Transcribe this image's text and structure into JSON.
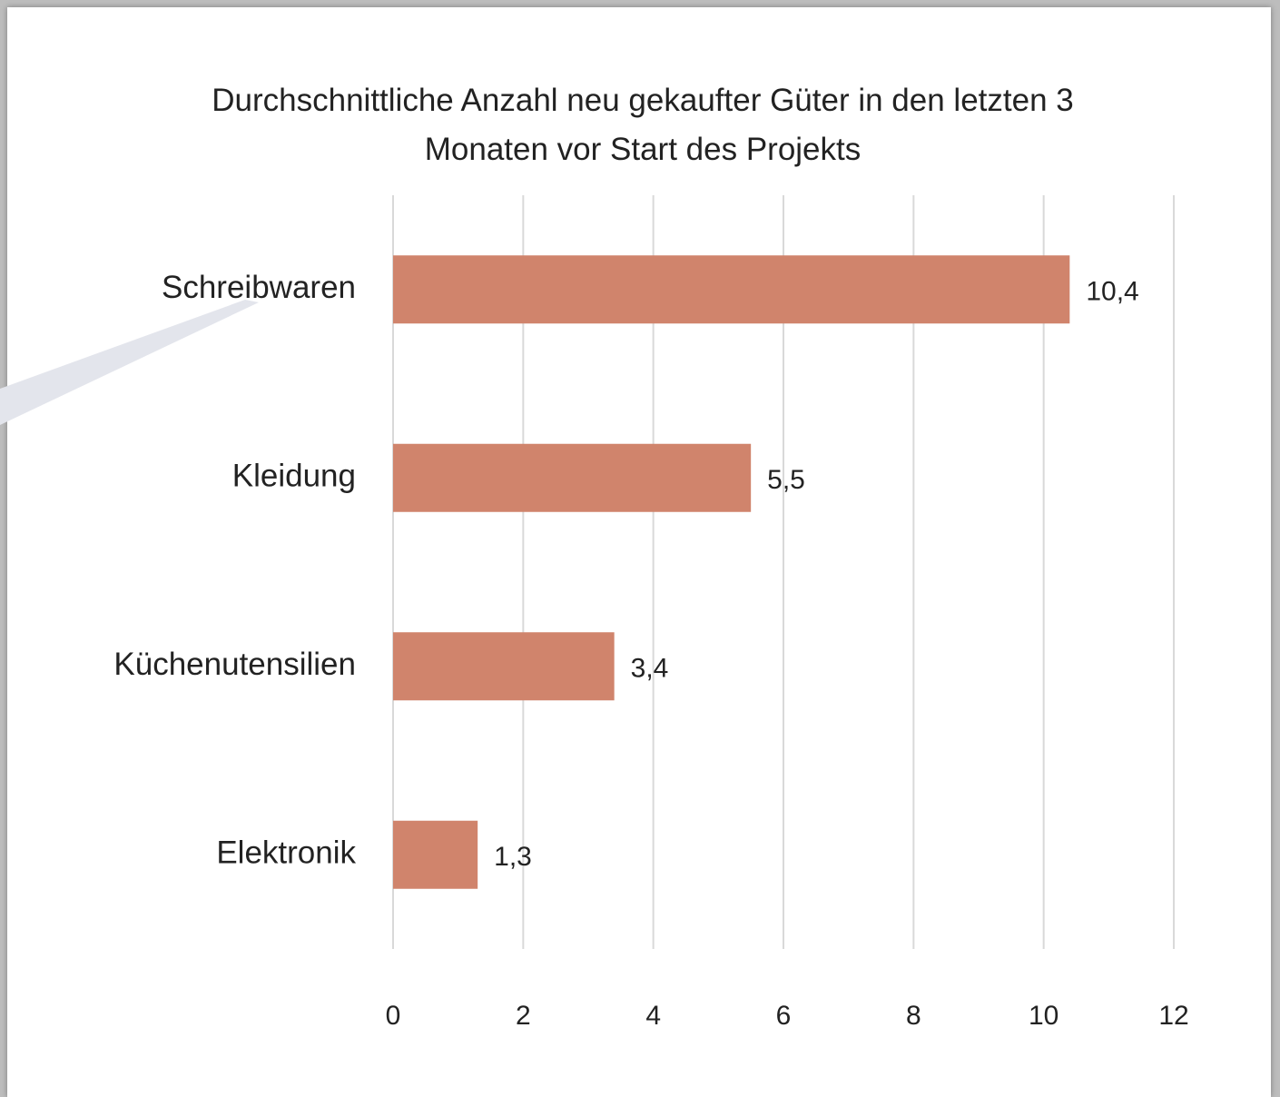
{
  "chart_data": {
    "type": "bar",
    "orientation": "horizontal",
    "title": "Durchschnittliche Anzahl neu gekaufter Güter in den letzten 3 Monaten vor Start des Projekts",
    "categories": [
      "Schreibwaren",
      "Kleidung",
      "Küchenutensilien",
      "Elektronik"
    ],
    "values": [
      10.4,
      5.5,
      3.4,
      1.3
    ],
    "value_labels": [
      "10,4",
      "5,5",
      "3,4",
      "1,3"
    ],
    "color": "#d0846c",
    "xlim": [
      0,
      12
    ],
    "xticks": [
      0,
      2,
      4,
      6,
      8,
      10,
      12
    ],
    "grid": true
  }
}
